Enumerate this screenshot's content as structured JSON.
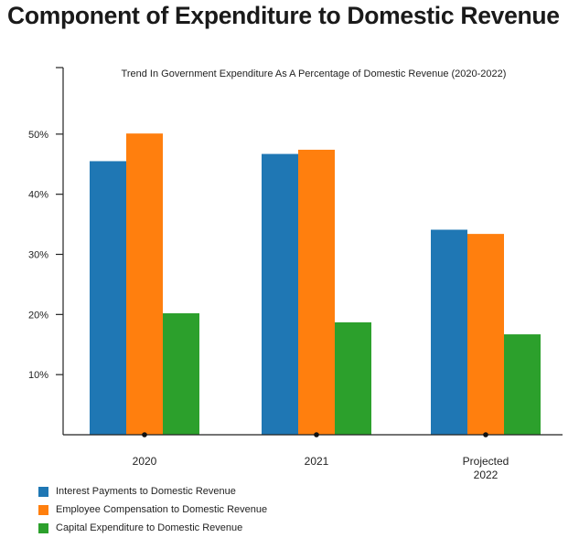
{
  "page_title": "Component of Expenditure to Domestic Revenue",
  "chart_data": {
    "type": "bar",
    "title": "Trend  In Government Expenditure As A Percentage of Domestic Revenue (2020-2022)",
    "categories": [
      "2020",
      "2021",
      "Projected\n2022"
    ],
    "series": [
      {
        "name": "Interest Payments to Domestic Revenue",
        "color": "#1f77b4",
        "values": [
          45.5,
          46.7,
          34.1
        ]
      },
      {
        "name": "Employee Compensation to Domestic Revenue",
        "color": "#ff7f0e",
        "values": [
          50.1,
          47.4,
          33.4
        ]
      },
      {
        "name": "Capital Expenditure to Domestic Revenue",
        "color": "#2ca02c",
        "values": [
          20.2,
          18.7,
          16.7
        ]
      }
    ],
    "y_ticks": [
      "10%",
      "20%",
      "30%",
      "40%",
      "50%"
    ],
    "y_tick_values": [
      10,
      20,
      30,
      40,
      50
    ],
    "ylim": [
      0,
      60
    ],
    "xlabel": "",
    "ylabel": "",
    "grid": false,
    "legend_position": "bottom-left"
  }
}
